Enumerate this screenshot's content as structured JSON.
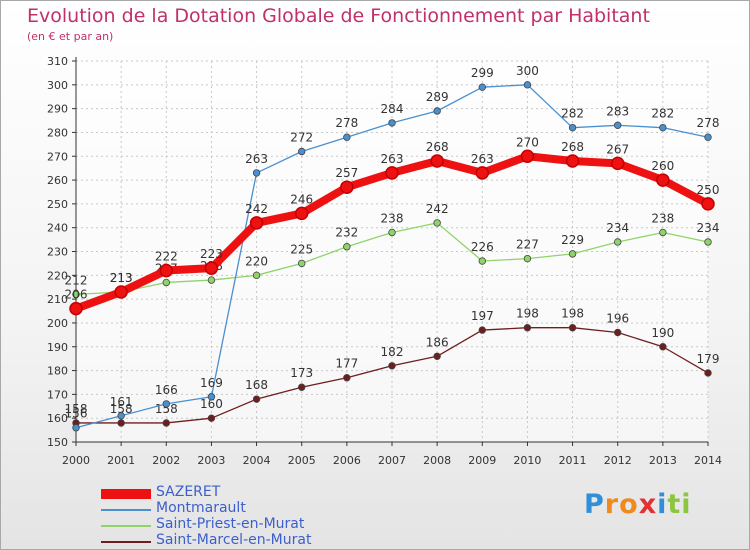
{
  "header": {
    "title": "Evolution de la Dotation Globale de Fonctionnement par Habitant",
    "subtitle": "(en € et par an)"
  },
  "brand": {
    "letters": [
      {
        "ch": "P",
        "color": "#2f8fd8"
      },
      {
        "ch": "r",
        "color": "#f08a1c"
      },
      {
        "ch": "o",
        "color": "#f08a1c"
      },
      {
        "ch": "x",
        "color": "#e43030"
      },
      {
        "ch": "i",
        "color": "#2f8fd8"
      },
      {
        "ch": "t",
        "color": "#8cc63f"
      },
      {
        "ch": "i",
        "color": "#8cc63f"
      }
    ]
  },
  "chart_data": {
    "type": "line",
    "title": "Evolution de la Dotation Globale de Fonctionnement par Habitant",
    "subtitle": "(en € et par an)",
    "x": [
      2000,
      2001,
      2002,
      2003,
      2004,
      2005,
      2006,
      2007,
      2008,
      2009,
      2010,
      2011,
      2012,
      2013,
      2014
    ],
    "ylim": [
      150,
      310
    ],
    "yticks": [
      150,
      160,
      170,
      180,
      190,
      200,
      210,
      220,
      230,
      240,
      250,
      260,
      270,
      280,
      290,
      300,
      310
    ],
    "grid": true,
    "legend_position": "bottom-left",
    "series": [
      {
        "name": "Saint-Marcel-en-Murat",
        "color": "#6e1e1e",
        "values": [
          158,
          158,
          158,
          160,
          168,
          173,
          177,
          182,
          186,
          197,
          198,
          198,
          196,
          190,
          179
        ]
      },
      {
        "name": "Saint-Priest-en-Murat",
        "color": "#8fd46a",
        "values": [
          212,
          213,
          217,
          218,
          220,
          225,
          232,
          238,
          242,
          226,
          227,
          229,
          234,
          238,
          234
        ]
      },
      {
        "name": "Montmarault",
        "color": "#4a90d0",
        "values": [
          156,
          161,
          166,
          169,
          263,
          272,
          278,
          284,
          289,
          299,
          300,
          282,
          283,
          282,
          278
        ]
      },
      {
        "name": "SAZERET",
        "color": "#ee1111",
        "values": [
          206,
          213,
          222,
          223,
          242,
          246,
          257,
          263,
          268,
          263,
          270,
          268,
          267,
          260,
          250
        ]
      }
    ],
    "legend": [
      "SAZERET",
      "Montmarault",
      "Saint-Priest-en-Murat",
      "Saint-Marcel-en-Murat"
    ]
  }
}
